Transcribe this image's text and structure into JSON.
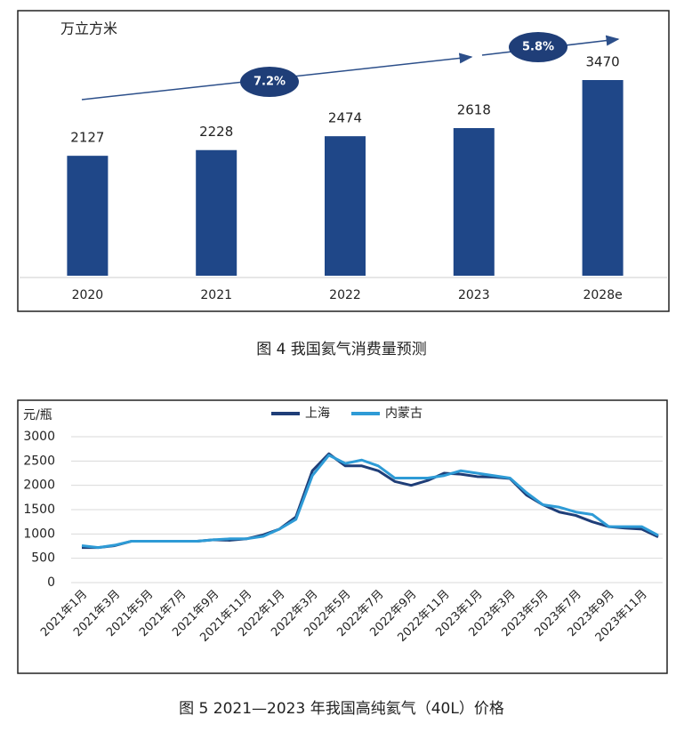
{
  "chart_data": [
    {
      "type": "bar",
      "unit": "万立方米",
      "caption": "图 4  我国氦气消费量预测",
      "categories": [
        "2020",
        "2021",
        "2022",
        "2023",
        "2028e"
      ],
      "values": [
        2127,
        2228,
        2474,
        2618,
        3470
      ],
      "color": "#1f4788",
      "annotations": [
        "7.2%",
        "5.8%"
      ]
    },
    {
      "type": "line",
      "unit": "元/瓶",
      "caption": "图 5  2021—2023 年我国高纯氦气（40L）价格",
      "categories": [
        "2021年1月",
        null,
        "2021年3月",
        null,
        "2021年5月",
        null,
        "2021年7月",
        null,
        "2021年9月",
        null,
        "2021年11月",
        null,
        "2022年1月",
        null,
        "2022年3月",
        null,
        "2022年5月",
        null,
        "2022年7月",
        null,
        "2022年9月",
        null,
        "2022年11月",
        null,
        "2023年1月",
        null,
        "2023年3月",
        null,
        "2023年5月",
        null,
        "2023年7月",
        null,
        "2023年9月",
        null,
        "2023年11月",
        null
      ],
      "series": [
        {
          "name": "上海",
          "color": "#1f3e78",
          "values": [
            720,
            720,
            760,
            850,
            850,
            850,
            850,
            850,
            880,
            870,
            900,
            980,
            1100,
            1350,
            2300,
            2650,
            2400,
            2400,
            2300,
            2080,
            2000,
            2100,
            2250,
            2230,
            2180,
            2170,
            2140,
            1800,
            1600,
            1450,
            1380,
            1250,
            1150,
            1120,
            1100,
            940
          ]
        },
        {
          "name": "内蒙古",
          "color": "#2e9bd6",
          "values": [
            760,
            720,
            770,
            850,
            850,
            850,
            850,
            850,
            880,
            900,
            900,
            950,
            1100,
            1300,
            2200,
            2620,
            2450,
            2520,
            2400,
            2150,
            2150,
            2150,
            2200,
            2300,
            2250,
            2200,
            2150,
            1850,
            1600,
            1550,
            1450,
            1400,
            1150,
            1150,
            1150,
            970
          ]
        }
      ],
      "ylim": [
        0,
        3000
      ],
      "yticks": [
        0,
        500,
        1000,
        1500,
        2000,
        2500,
        3000
      ],
      "grid": true,
      "legend": "top"
    }
  ]
}
